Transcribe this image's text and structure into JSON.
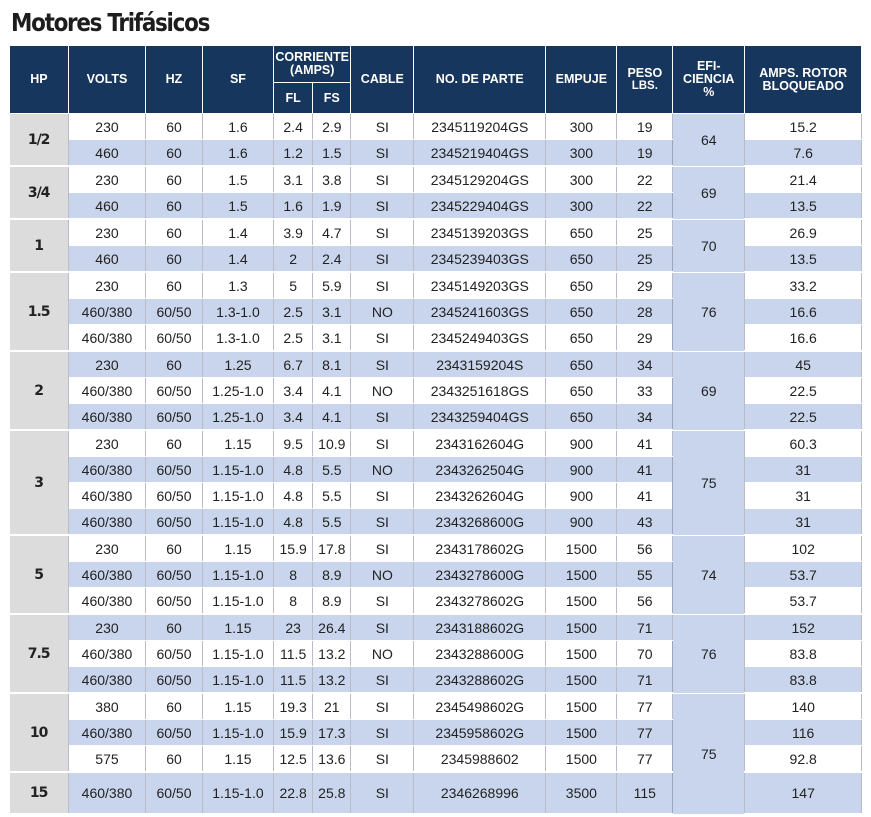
{
  "title": "Motores Trifásicos",
  "headers": {
    "hp": "HP",
    "volts": "VOLTS",
    "hz": "HZ",
    "sf": "SF",
    "corriente_line1": "CORRIENTE",
    "corriente_line2": "(AMPS)",
    "fl": "FL",
    "fs": "FS",
    "cable": "CABLE",
    "part": "NO. DE PARTE",
    "empuje": "EMPUJE",
    "peso_line1": "PESO",
    "peso_line2": "LBS.",
    "efi_line1": "EFI-",
    "efi_line2": "CIENCIA",
    "efi_line3": "%",
    "amps_line1": "AMPS. ROTOR",
    "amps_line2": "BLOQUEADO"
  },
  "groups": [
    {
      "hp": "1/2",
      "efficiency": "64",
      "rows": [
        {
          "volts": "230",
          "hz": "60",
          "sf": "1.6",
          "fl": "2.4",
          "fs": "2.9",
          "cable": "SI",
          "part": "2345119204GS",
          "empuje": "300",
          "peso": "19",
          "amps": "15.2"
        },
        {
          "volts": "460",
          "hz": "60",
          "sf": "1.6",
          "fl": "1.2",
          "fs": "1.5",
          "cable": "SI",
          "part": "2345219404GS",
          "empuje": "300",
          "peso": "19",
          "amps": "7.6"
        }
      ]
    },
    {
      "hp": "3/4",
      "efficiency": "69",
      "rows": [
        {
          "volts": "230",
          "hz": "60",
          "sf": "1.5",
          "fl": "3.1",
          "fs": "3.8",
          "cable": "SI",
          "part": "2345129204GS",
          "empuje": "300",
          "peso": "22",
          "amps": "21.4"
        },
        {
          "volts": "460",
          "hz": "60",
          "sf": "1.5",
          "fl": "1.6",
          "fs": "1.9",
          "cable": "SI",
          "part": "2345229404GS",
          "empuje": "300",
          "peso": "22",
          "amps": "13.5"
        }
      ]
    },
    {
      "hp": "1",
      "efficiency": "70",
      "rows": [
        {
          "volts": "230",
          "hz": "60",
          "sf": "1.4",
          "fl": "3.9",
          "fs": "4.7",
          "cable": "SI",
          "part": "2345139203GS",
          "empuje": "650",
          "peso": "25",
          "amps": "26.9"
        },
        {
          "volts": "460",
          "hz": "60",
          "sf": "1.4",
          "fl": "2",
          "fs": "2.4",
          "cable": "SI",
          "part": "2345239403GS",
          "empuje": "650",
          "peso": "25",
          "amps": "13.5"
        }
      ]
    },
    {
      "hp": "1.5",
      "efficiency": "76",
      "rows": [
        {
          "volts": "230",
          "hz": "60",
          "sf": "1.3",
          "fl": "5",
          "fs": "5.9",
          "cable": "SI",
          "part": "2345149203GS",
          "empuje": "650",
          "peso": "29",
          "amps": "33.2"
        },
        {
          "volts": "460/380",
          "hz": "60/50",
          "sf": "1.3-1.0",
          "fl": "2.5",
          "fs": "3.1",
          "cable": "NO",
          "part": "2345241603GS",
          "empuje": "650",
          "peso": "28",
          "amps": "16.6"
        },
        {
          "volts": "460/380",
          "hz": "60/50",
          "sf": "1.3-1.0",
          "fl": "2.5",
          "fs": "3.1",
          "cable": "SI",
          "part": "2345249403GS",
          "empuje": "650",
          "peso": "29",
          "amps": "16.6"
        }
      ]
    },
    {
      "hp": "2",
      "efficiency": "69",
      "rows": [
        {
          "volts": "230",
          "hz": "60",
          "sf": "1.25",
          "fl": "6.7",
          "fs": "8.1",
          "cable": "SI",
          "part": "2343159204S",
          "empuje": "650",
          "peso": "34",
          "amps": "45"
        },
        {
          "volts": "460/380",
          "hz": "60/50",
          "sf": "1.25-1.0",
          "fl": "3.4",
          "fs": "4.1",
          "cable": "NO",
          "part": "2343251618GS",
          "empuje": "650",
          "peso": "33",
          "amps": "22.5"
        },
        {
          "volts": "460/380",
          "hz": "60/50",
          "sf": "1.25-1.0",
          "fl": "3.4",
          "fs": "4.1",
          "cable": "SI",
          "part": "2343259404GS",
          "empuje": "650",
          "peso": "34",
          "amps": "22.5"
        }
      ]
    },
    {
      "hp": "3",
      "efficiency": "75",
      "rows": [
        {
          "volts": "230",
          "hz": "60",
          "sf": "1.15",
          "fl": "9.5",
          "fs": "10.9",
          "cable": "SI",
          "part": "2343162604G",
          "empuje": "900",
          "peso": "41",
          "amps": "60.3"
        },
        {
          "volts": "460/380",
          "hz": "60/50",
          "sf": "1.15-1.0",
          "fl": "4.8",
          "fs": "5.5",
          "cable": "NO",
          "part": "2343262504G",
          "empuje": "900",
          "peso": "41",
          "amps": "31"
        },
        {
          "volts": "460/380",
          "hz": "60/50",
          "sf": "1.15-1.0",
          "fl": "4.8",
          "fs": "5.5",
          "cable": "SI",
          "part": "2343262604G",
          "empuje": "900",
          "peso": "41",
          "amps": "31"
        },
        {
          "volts": "460/380",
          "hz": "60/50",
          "sf": "1.15-1.0",
          "fl": "4.8",
          "fs": "5.5",
          "cable": "SI",
          "part": "2343268600G",
          "empuje": "900",
          "peso": "43",
          "amps": "31"
        }
      ]
    },
    {
      "hp": "5",
      "efficiency": "74",
      "rows": [
        {
          "volts": "230",
          "hz": "60",
          "sf": "1.15",
          "fl": "15.9",
          "fs": "17.8",
          "cable": "SI",
          "part": "2343178602G",
          "empuje": "1500",
          "peso": "56",
          "amps": "102"
        },
        {
          "volts": "460/380",
          "hz": "60/50",
          "sf": "1.15-1.0",
          "fl": "8",
          "fs": "8.9",
          "cable": "NO",
          "part": "2343278600G",
          "empuje": "1500",
          "peso": "55",
          "amps": "53.7"
        },
        {
          "volts": "460/380",
          "hz": "60/50",
          "sf": "1.15-1.0",
          "fl": "8",
          "fs": "8.9",
          "cable": "SI",
          "part": "2343278602G",
          "empuje": "1500",
          "peso": "56",
          "amps": "53.7"
        }
      ]
    },
    {
      "hp": "7.5",
      "efficiency": "76",
      "rows": [
        {
          "volts": "230",
          "hz": "60",
          "sf": "1.15",
          "fl": "23",
          "fs": "26.4",
          "cable": "SI",
          "part": "2343188602G",
          "empuje": "1500",
          "peso": "71",
          "amps": "152"
        },
        {
          "volts": "460/380",
          "hz": "60/50",
          "sf": "1.15-1.0",
          "fl": "11.5",
          "fs": "13.2",
          "cable": "NO",
          "part": "2343288600G",
          "empuje": "1500",
          "peso": "70",
          "amps": "83.8"
        },
        {
          "volts": "460/380",
          "hz": "60/50",
          "sf": "1.15-1.0",
          "fl": "11.5",
          "fs": "13.2",
          "cable": "SI",
          "part": "2343288602G",
          "empuje": "1500",
          "peso": "71",
          "amps": "83.8"
        }
      ]
    },
    {
      "hp": "10",
      "efficiency": "75",
      "rows": [
        {
          "volts": "380",
          "hz": "60",
          "sf": "1.15",
          "fl": "19.3",
          "fs": "21",
          "cable": "SI",
          "part": "2345498602G",
          "empuje": "1500",
          "peso": "77",
          "amps": "140"
        },
        {
          "volts": "460/380",
          "hz": "60/50",
          "sf": "1.15-1.0",
          "fl": "15.9",
          "fs": "17.3",
          "cable": "SI",
          "part": "2345958602G",
          "empuje": "1500",
          "peso": "77",
          "amps": "116"
        },
        {
          "volts": "575",
          "hz": "60",
          "sf": "1.15",
          "fl": "12.5",
          "fs": "13.6",
          "cable": "SI",
          "part": "2345988602",
          "empuje": "1500",
          "peso": "77",
          "amps": "92.8"
        }
      ]
    },
    {
      "hp": "15",
      "efficiency": "",
      "rows": [
        {
          "volts": "460/380",
          "hz": "60/50",
          "sf": "1.15-1.0",
          "fl": "22.8",
          "fs": "25.8",
          "cable": "SI",
          "part": "2346268996",
          "empuje": "3500",
          "peso": "115",
          "amps": "147"
        }
      ]
    }
  ]
}
